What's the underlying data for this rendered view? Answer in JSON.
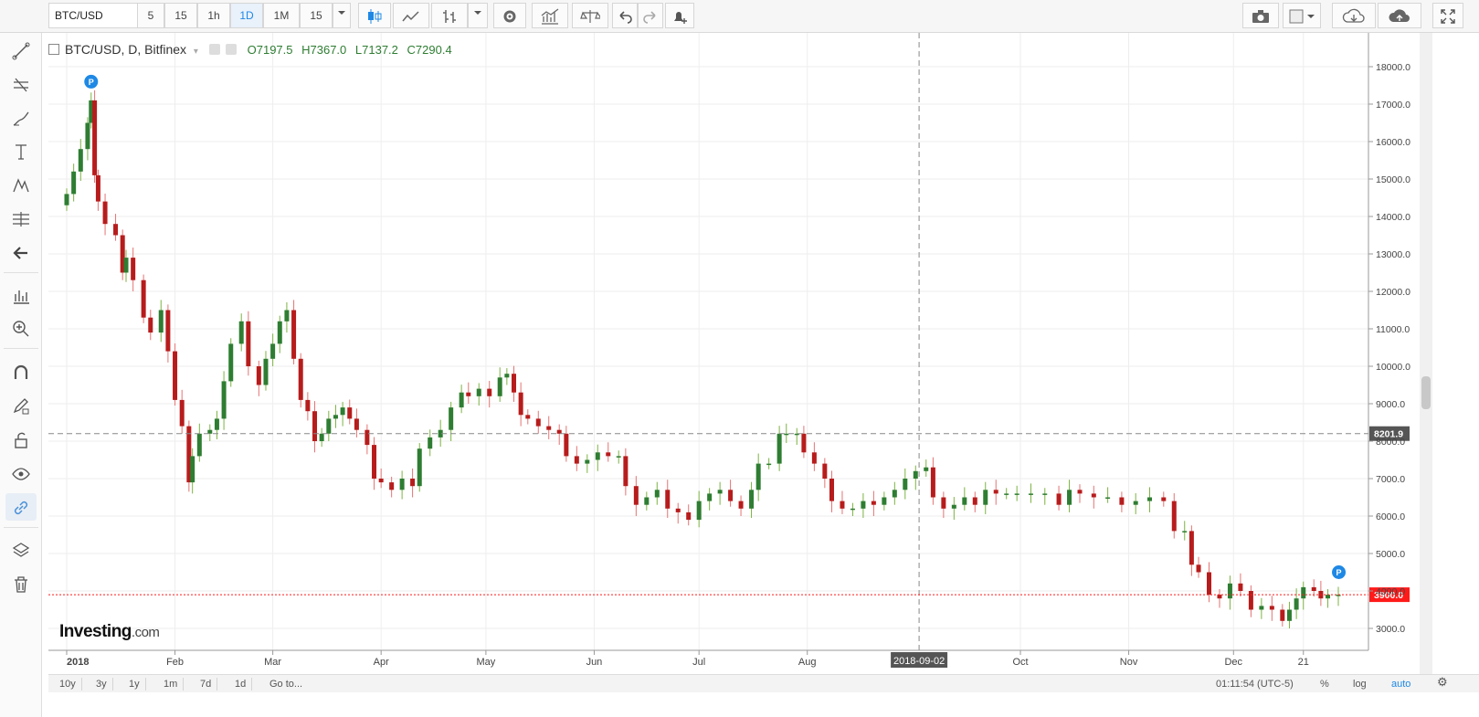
{
  "toolbar": {
    "symbol": "BTC/USD",
    "intervals": [
      "5",
      "15",
      "1h",
      "1D",
      "1M",
      "15"
    ],
    "active_interval": "1D"
  },
  "legend": {
    "title": "BTC/USD, D, Bitfinex",
    "open": "O7197.5",
    "high": "H7367.0",
    "low": "L7137.2",
    "close": "C7290.4"
  },
  "crosshair": {
    "price_label": "8201.9",
    "date_label": "2018-09-02"
  },
  "last_price_label": "3900.0",
  "colors": {
    "up": "#2e7d32",
    "down": "#b71c1c",
    "last_price": "#ff1a1a",
    "accent": "#1e88e5"
  },
  "bottom_bar": {
    "ranges": [
      "10y",
      "3y",
      "1y",
      "1m",
      "7d",
      "1d",
      "Go to..."
    ],
    "time": "01:11:54 (UTC-5)",
    "percent": "%",
    "log": "log",
    "auto": "auto"
  },
  "logo": {
    "brand": "Investing",
    "suffix": ".com"
  },
  "chart_data": {
    "type": "candlestick",
    "y_ticks": [
      "3000.0",
      "4000.0",
      "5000.0",
      "6000.0",
      "7000.0",
      "8000.0",
      "9000.0",
      "10000.0",
      "11000.0",
      "12000.0",
      "13000.0",
      "14000.0",
      "15000.0",
      "16000.0",
      "17000.0",
      "18000.0"
    ],
    "x_ticks": [
      "2018",
      "Feb",
      "Mar",
      "Apr",
      "May",
      "Jun",
      "Jul",
      "Aug",
      "Oct",
      "Nov",
      "Dec",
      "21"
    ],
    "ylim": [
      2300,
      18800
    ],
    "scale": "linear",
    "grid": true,
    "markers": [
      "P",
      "P"
    ],
    "series": [
      {
        "d": "2018-01-01",
        "c": 14600
      },
      {
        "d": "2018-01-03",
        "c": 15200
      },
      {
        "d": "2018-01-05",
        "c": 15800
      },
      {
        "d": "2018-01-07",
        "c": 16500
      },
      {
        "d": "2018-01-08",
        "c": 17100
      },
      {
        "d": "2018-01-09",
        "c": 15100
      },
      {
        "d": "2018-01-10",
        "c": 14400
      },
      {
        "d": "2018-01-12",
        "c": 13800
      },
      {
        "d": "2018-01-15",
        "c": 13500
      },
      {
        "d": "2018-01-17",
        "c": 12500
      },
      {
        "d": "2018-01-18",
        "c": 12900
      },
      {
        "d": "2018-01-20",
        "c": 12300
      },
      {
        "d": "2018-01-23",
        "c": 11300
      },
      {
        "d": "2018-01-25",
        "c": 10900
      },
      {
        "d": "2018-01-28",
        "c": 11500
      },
      {
        "d": "2018-01-30",
        "c": 10400
      },
      {
        "d": "2018-02-01",
        "c": 9100
      },
      {
        "d": "2018-02-03",
        "c": 8400
      },
      {
        "d": "2018-02-05",
        "c": 6900
      },
      {
        "d": "2018-02-06",
        "c": 7600
      },
      {
        "d": "2018-02-08",
        "c": 8200
      },
      {
        "d": "2018-02-11",
        "c": 8300
      },
      {
        "d": "2018-02-13",
        "c": 8600
      },
      {
        "d": "2018-02-15",
        "c": 9600
      },
      {
        "d": "2018-02-17",
        "c": 10600
      },
      {
        "d": "2018-02-20",
        "c": 11200
      },
      {
        "d": "2018-02-22",
        "c": 10000
      },
      {
        "d": "2018-02-25",
        "c": 9500
      },
      {
        "d": "2018-02-27",
        "c": 10200
      },
      {
        "d": "2018-03-01",
        "c": 10600
      },
      {
        "d": "2018-03-03",
        "c": 11200
      },
      {
        "d": "2018-03-05",
        "c": 11500
      },
      {
        "d": "2018-03-07",
        "c": 10200
      },
      {
        "d": "2018-03-09",
        "c": 9100
      },
      {
        "d": "2018-03-11",
        "c": 8800
      },
      {
        "d": "2018-03-13",
        "c": 8000
      },
      {
        "d": "2018-03-15",
        "c": 8200
      },
      {
        "d": "2018-03-17",
        "c": 8600
      },
      {
        "d": "2018-03-19",
        "c": 8700
      },
      {
        "d": "2018-03-21",
        "c": 8900
      },
      {
        "d": "2018-03-23",
        "c": 8600
      },
      {
        "d": "2018-03-25",
        "c": 8300
      },
      {
        "d": "2018-03-28",
        "c": 7900
      },
      {
        "d": "2018-03-30",
        "c": 7000
      },
      {
        "d": "2018-04-01",
        "c": 6900
      },
      {
        "d": "2018-04-04",
        "c": 6700
      },
      {
        "d": "2018-04-07",
        "c": 7000
      },
      {
        "d": "2018-04-10",
        "c": 6800
      },
      {
        "d": "2018-04-12",
        "c": 7800
      },
      {
        "d": "2018-04-15",
        "c": 8100
      },
      {
        "d": "2018-04-18",
        "c": 8300
      },
      {
        "d": "2018-04-21",
        "c": 8900
      },
      {
        "d": "2018-04-24",
        "c": 9300
      },
      {
        "d": "2018-04-26",
        "c": 9200
      },
      {
        "d": "2018-04-29",
        "c": 9400
      },
      {
        "d": "2018-05-02",
        "c": 9200
      },
      {
        "d": "2018-05-05",
        "c": 9700
      },
      {
        "d": "2018-05-07",
        "c": 9800
      },
      {
        "d": "2018-05-09",
        "c": 9300
      },
      {
        "d": "2018-05-11",
        "c": 8700
      },
      {
        "d": "2018-05-13",
        "c": 8600
      },
      {
        "d": "2018-05-16",
        "c": 8400
      },
      {
        "d": "2018-05-19",
        "c": 8300
      },
      {
        "d": "2018-05-22",
        "c": 8200
      },
      {
        "d": "2018-05-24",
        "c": 7600
      },
      {
        "d": "2018-05-27",
        "c": 7400
      },
      {
        "d": "2018-05-30",
        "c": 7500
      },
      {
        "d": "2018-06-02",
        "c": 7700
      },
      {
        "d": "2018-06-05",
        "c": 7600
      },
      {
        "d": "2018-06-08",
        "c": 7600
      },
      {
        "d": "2018-06-10",
        "c": 6800
      },
      {
        "d": "2018-06-13",
        "c": 6300
      },
      {
        "d": "2018-06-16",
        "c": 6500
      },
      {
        "d": "2018-06-19",
        "c": 6700
      },
      {
        "d": "2018-06-22",
        "c": 6200
      },
      {
        "d": "2018-06-25",
        "c": 6100
      },
      {
        "d": "2018-06-28",
        "c": 5900
      },
      {
        "d": "2018-07-01",
        "c": 6400
      },
      {
        "d": "2018-07-04",
        "c": 6600
      },
      {
        "d": "2018-07-07",
        "c": 6700
      },
      {
        "d": "2018-07-10",
        "c": 6400
      },
      {
        "d": "2018-07-13",
        "c": 6200
      },
      {
        "d": "2018-07-16",
        "c": 6700
      },
      {
        "d": "2018-07-18",
        "c": 7400
      },
      {
        "d": "2018-07-21",
        "c": 7400
      },
      {
        "d": "2018-07-24",
        "c": 8200
      },
      {
        "d": "2018-07-26",
        "c": 8200
      },
      {
        "d": "2018-07-29",
        "c": 8200
      },
      {
        "d": "2018-07-31",
        "c": 7700
      },
      {
        "d": "2018-08-03",
        "c": 7400
      },
      {
        "d": "2018-08-06",
        "c": 7000
      },
      {
        "d": "2018-08-08",
        "c": 6400
      },
      {
        "d": "2018-08-11",
        "c": 6200
      },
      {
        "d": "2018-08-14",
        "c": 6200
      },
      {
        "d": "2018-08-17",
        "c": 6400
      },
      {
        "d": "2018-08-20",
        "c": 6300
      },
      {
        "d": "2018-08-23",
        "c": 6500
      },
      {
        "d": "2018-08-26",
        "c": 6700
      },
      {
        "d": "2018-08-29",
        "c": 7000
      },
      {
        "d": "2018-09-01",
        "c": 7200
      },
      {
        "d": "2018-09-04",
        "c": 7300
      },
      {
        "d": "2018-09-06",
        "c": 6500
      },
      {
        "d": "2018-09-09",
        "c": 6200
      },
      {
        "d": "2018-09-12",
        "c": 6300
      },
      {
        "d": "2018-09-15",
        "c": 6500
      },
      {
        "d": "2018-09-18",
        "c": 6300
      },
      {
        "d": "2018-09-21",
        "c": 6700
      },
      {
        "d": "2018-09-24",
        "c": 6600
      },
      {
        "d": "2018-09-27",
        "c": 6600
      },
      {
        "d": "2018-09-30",
        "c": 6600
      },
      {
        "d": "2018-10-04",
        "c": 6600
      },
      {
        "d": "2018-10-08",
        "c": 6600
      },
      {
        "d": "2018-10-12",
        "c": 6300
      },
      {
        "d": "2018-10-15",
        "c": 6700
      },
      {
        "d": "2018-10-18",
        "c": 6600
      },
      {
        "d": "2018-10-22",
        "c": 6500
      },
      {
        "d": "2018-10-26",
        "c": 6500
      },
      {
        "d": "2018-10-30",
        "c": 6300
      },
      {
        "d": "2018-11-03",
        "c": 6400
      },
      {
        "d": "2018-11-07",
        "c": 6500
      },
      {
        "d": "2018-11-11",
        "c": 6400
      },
      {
        "d": "2018-11-14",
        "c": 5600
      },
      {
        "d": "2018-11-17",
        "c": 5600
      },
      {
        "d": "2018-11-19",
        "c": 4700
      },
      {
        "d": "2018-11-21",
        "c": 4500
      },
      {
        "d": "2018-11-24",
        "c": 3900
      },
      {
        "d": "2018-11-27",
        "c": 3800
      },
      {
        "d": "2018-11-30",
        "c": 4200
      },
      {
        "d": "2018-12-03",
        "c": 4000
      },
      {
        "d": "2018-12-06",
        "c": 3500
      },
      {
        "d": "2018-12-09",
        "c": 3600
      },
      {
        "d": "2018-12-12",
        "c": 3500
      },
      {
        "d": "2018-12-15",
        "c": 3200
      },
      {
        "d": "2018-12-17",
        "c": 3500
      },
      {
        "d": "2018-12-19",
        "c": 3800
      },
      {
        "d": "2018-12-21",
        "c": 4100
      },
      {
        "d": "2018-12-24",
        "c": 4000
      },
      {
        "d": "2018-12-26",
        "c": 3800
      },
      {
        "d": "2018-12-28",
        "c": 3900
      },
      {
        "d": "2018-12-31",
        "c": 3900
      }
    ]
  }
}
